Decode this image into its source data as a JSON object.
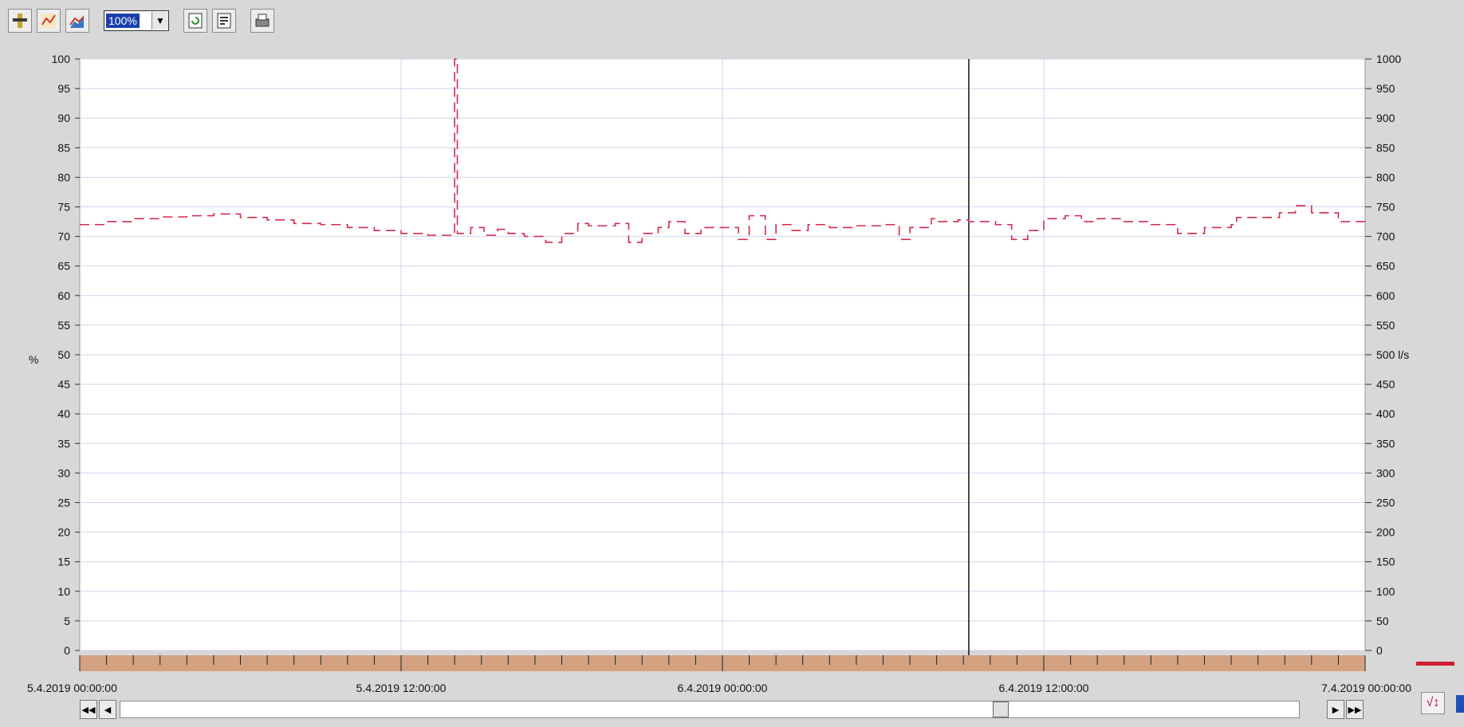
{
  "toolbar": {
    "zoom_value": "100%",
    "buttons": [
      "ruler-icon",
      "line-chart-icon",
      "area-chart-icon",
      "refresh-icon",
      "properties-icon",
      "print-icon"
    ]
  },
  "chart_data": {
    "type": "line",
    "title": "",
    "ylabel_left": "%",
    "ylabel_right": "l/s",
    "y_left_range": [
      0,
      100
    ],
    "y_left_ticks": [
      "0",
      "5",
      "10",
      "15",
      "20",
      "25",
      "30",
      "35",
      "40",
      "45",
      "50",
      "55",
      "60",
      "65",
      "70",
      "75",
      "80",
      "85",
      "90",
      "95",
      "100"
    ],
    "y_right_range": [
      0,
      1000
    ],
    "y_right_ticks": [
      "0",
      "50",
      "100",
      "150",
      "200",
      "250",
      "300",
      "350",
      "400",
      "450",
      "500 l/s",
      "550",
      "600",
      "650",
      "700",
      "750",
      "800",
      "850",
      "900",
      "950",
      "1000"
    ],
    "x_range_hours": [
      0,
      48
    ],
    "x_tick_labels": [
      {
        "hours": 0,
        "label": "5.4.2019 00:00:00"
      },
      {
        "hours": 12,
        "label": "5.4.2019 12:00:00"
      },
      {
        "hours": 24,
        "label": "6.4.2019 00:00:00"
      },
      {
        "hours": 36,
        "label": "6.4.2019 12:00:00"
      },
      {
        "hours": 48,
        "label": "7.4.2019 00:00:00"
      }
    ],
    "cursor_hours": 33.2,
    "grid": true,
    "series": [
      {
        "color": "#d42a4c",
        "style": "dashed-step",
        "points": [
          [
            0,
            72
          ],
          [
            1,
            72.5
          ],
          [
            2,
            73
          ],
          [
            3,
            73.3
          ],
          [
            4,
            73.5
          ],
          [
            5,
            73.8
          ],
          [
            6,
            73.2
          ],
          [
            7,
            72.8
          ],
          [
            8,
            72.2
          ],
          [
            9,
            72
          ],
          [
            10,
            71.5
          ],
          [
            11,
            71
          ],
          [
            12,
            70.5
          ],
          [
            13,
            70.2
          ],
          [
            14,
            100
          ],
          [
            14.1,
            70.5
          ],
          [
            14.6,
            71.5
          ],
          [
            15.1,
            70.2
          ],
          [
            15.6,
            71.2
          ],
          [
            16,
            70.5
          ],
          [
            16.6,
            70
          ],
          [
            17.4,
            69
          ],
          [
            18,
            70.5
          ],
          [
            18.6,
            72.2
          ],
          [
            19,
            71.8
          ],
          [
            20,
            72.2
          ],
          [
            20.5,
            69
          ],
          [
            21,
            70.5
          ],
          [
            21.6,
            71.5
          ],
          [
            22,
            72.5
          ],
          [
            22.6,
            70.5
          ],
          [
            23.2,
            71.5
          ],
          [
            24,
            71.5
          ],
          [
            24.6,
            69.5
          ],
          [
            25,
            73.5
          ],
          [
            25.6,
            69.5
          ],
          [
            26,
            72
          ],
          [
            26.6,
            71
          ],
          [
            27.2,
            72
          ],
          [
            28,
            71.5
          ],
          [
            29,
            71.8
          ],
          [
            30,
            72
          ],
          [
            30.6,
            69.5
          ],
          [
            31,
            71.5
          ],
          [
            31.8,
            73
          ],
          [
            32,
            72.5
          ],
          [
            32.8,
            72.8
          ],
          [
            33.2,
            72.5
          ],
          [
            34.2,
            72
          ],
          [
            34.8,
            69.5
          ],
          [
            35.4,
            71
          ],
          [
            36,
            73
          ],
          [
            36.8,
            73.5
          ],
          [
            37.4,
            72.5
          ],
          [
            38,
            73
          ],
          [
            39,
            72.5
          ],
          [
            40,
            72
          ],
          [
            41,
            70.5
          ],
          [
            42,
            71.5
          ],
          [
            43,
            72
          ],
          [
            43.2,
            73.2
          ],
          [
            44,
            73.2
          ],
          [
            44.8,
            74
          ],
          [
            45.4,
            75.2
          ],
          [
            46,
            74
          ],
          [
            47,
            72.5
          ],
          [
            48,
            72
          ],
          [
            48.6,
            70
          ],
          [
            49.4,
            70.5
          ],
          [
            50,
            71
          ],
          [
            51,
            72
          ],
          [
            52,
            73
          ],
          [
            53,
            74.5
          ],
          [
            54,
            74.2
          ],
          [
            55,
            73.5
          ]
        ]
      }
    ]
  },
  "scrollbar": {
    "first_label": "◀◀",
    "prev_label": "◀",
    "next_label": "▶",
    "last_label": "▶▶",
    "position": 0.75
  },
  "ruler_label": "√↕"
}
